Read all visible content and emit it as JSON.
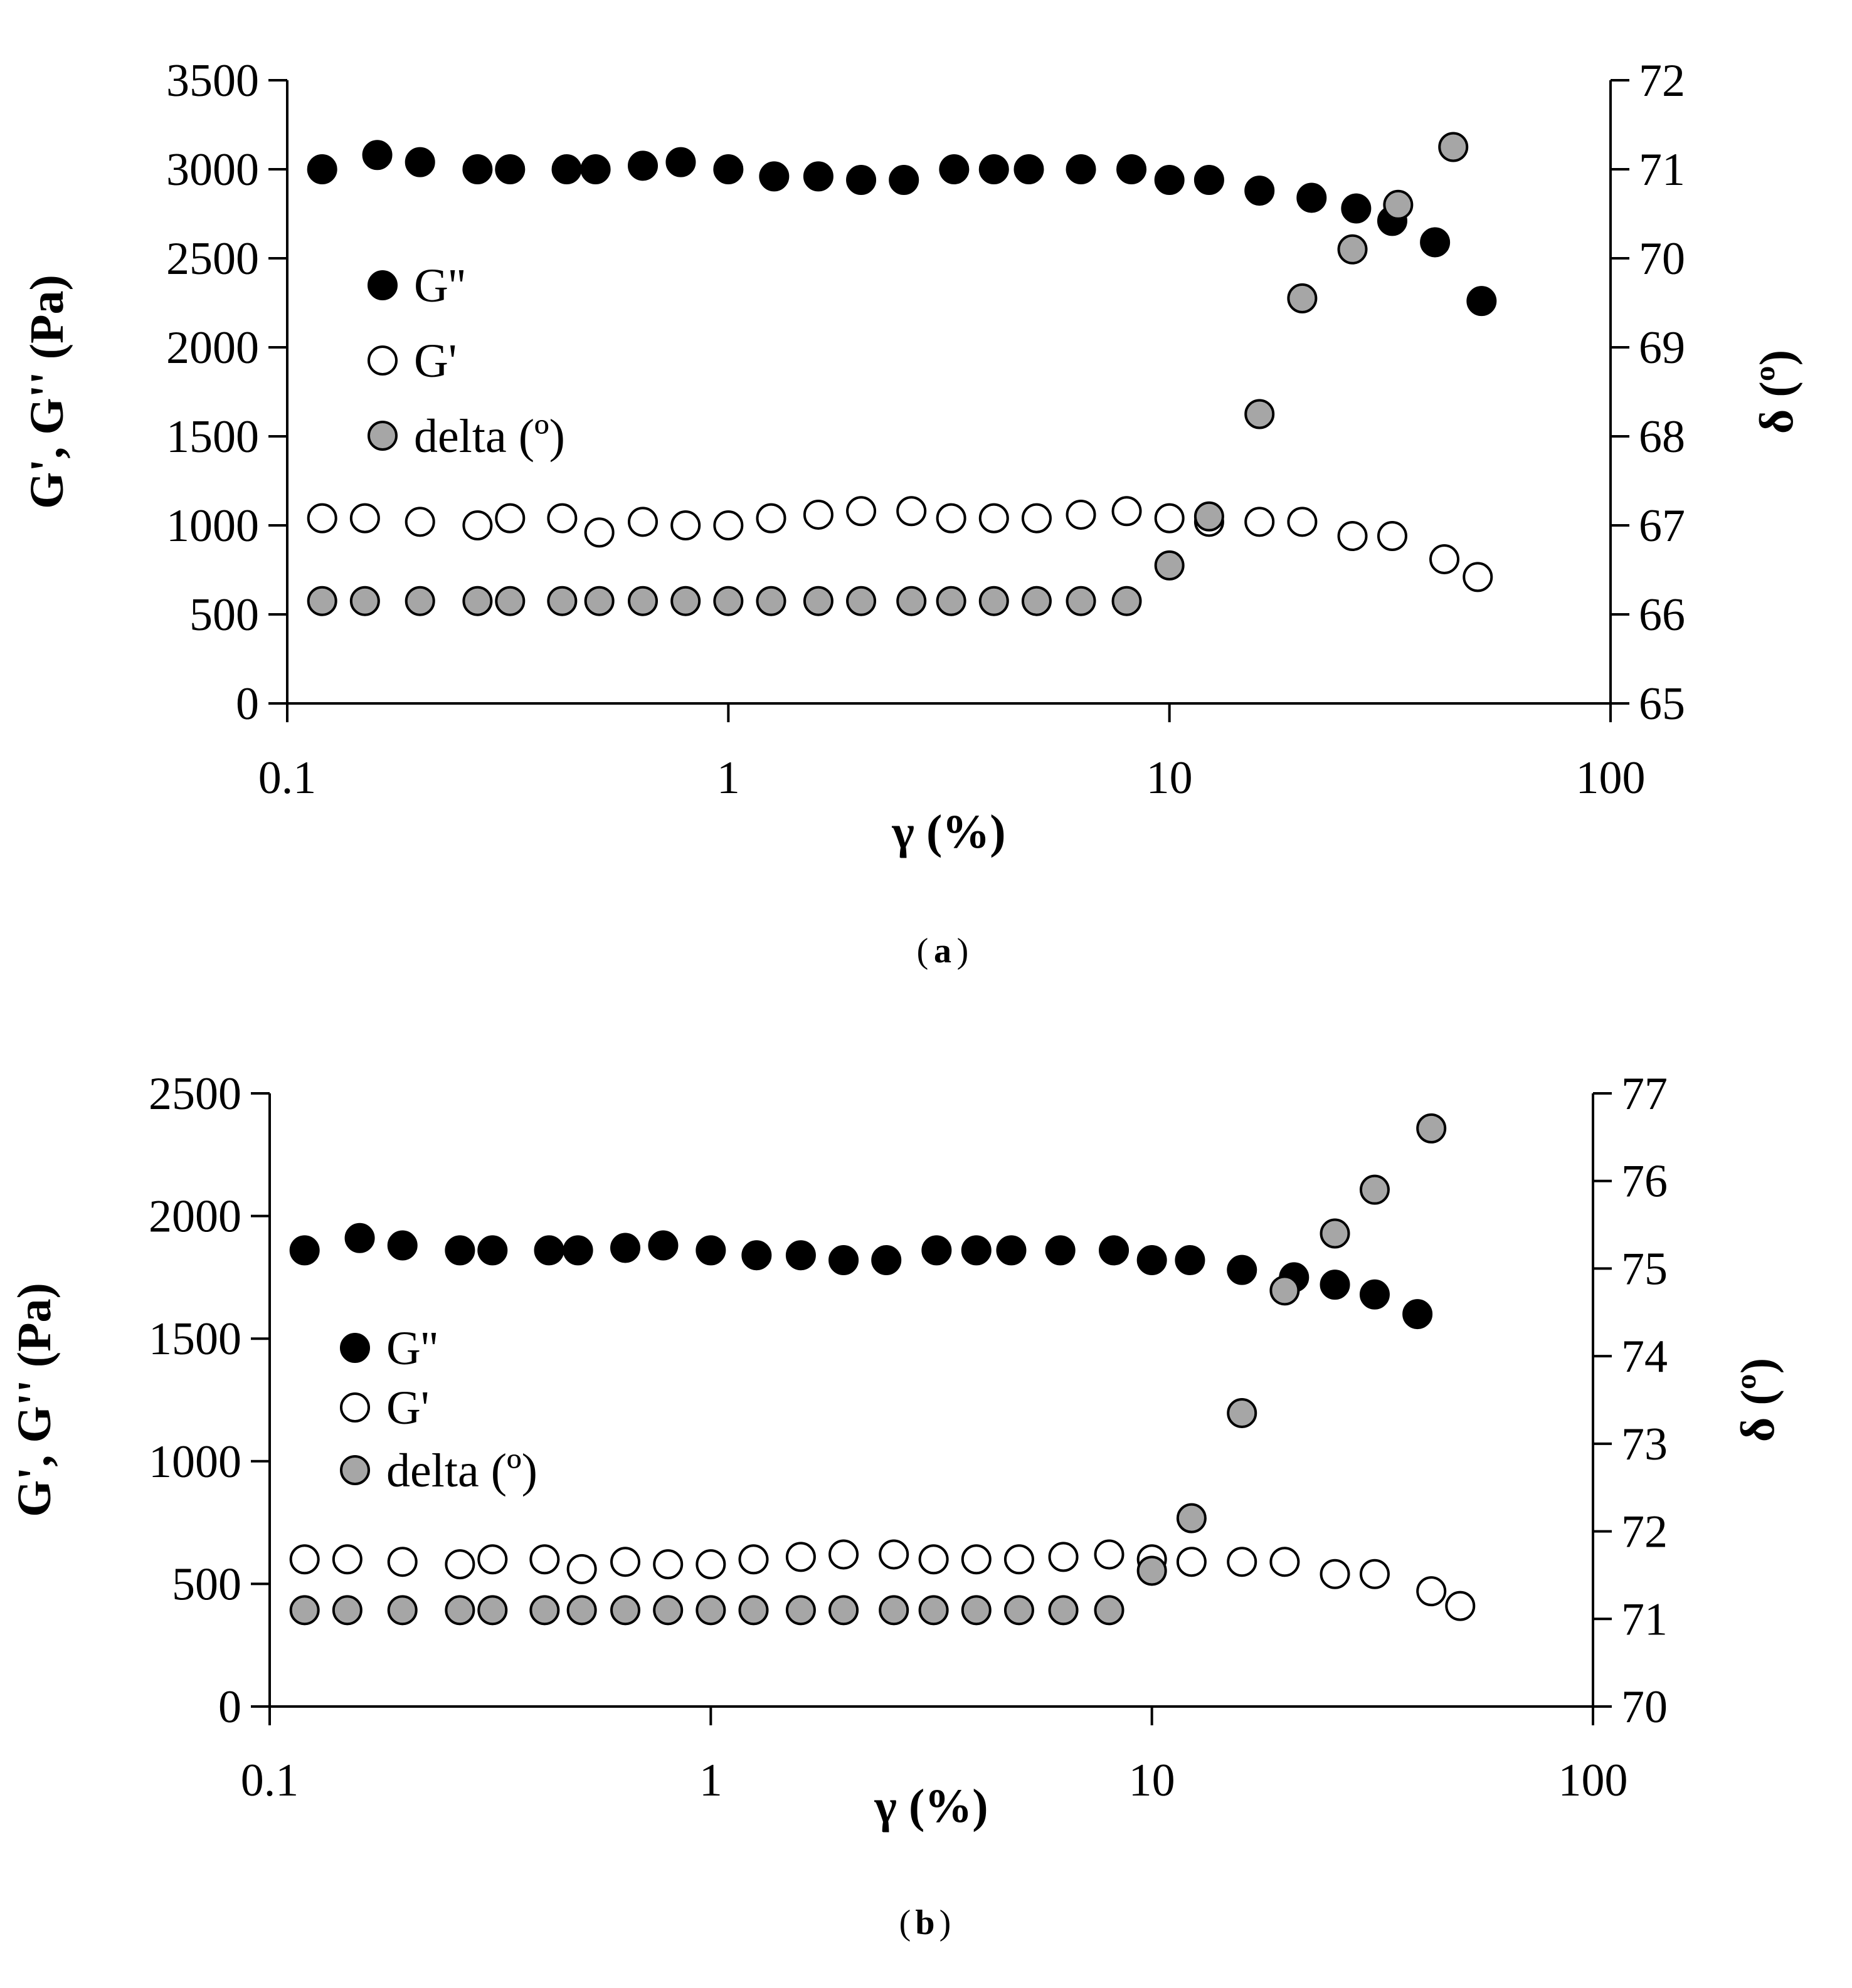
{
  "chart_data": [
    {
      "id": "a",
      "type": "scatter",
      "caption": "a",
      "x_scale": "log",
      "xlabel": "γ (%)",
      "ylabel": "G', G'' (Pa)",
      "ylabel_right": "δ (º)",
      "xlim": [
        0.1,
        100
      ],
      "ylim": [
        0,
        3500
      ],
      "ylim_right": [
        65,
        72
      ],
      "x_ticks": [
        "0.1",
        "1",
        "10",
        "100"
      ],
      "y_ticks": [
        "0",
        "500",
        "1000",
        "1500",
        "2000",
        "2500",
        "3000",
        "3500"
      ],
      "y_right_ticks": [
        "65",
        "66",
        "67",
        "68",
        "69",
        "70",
        "71",
        "72"
      ],
      "legend_position": "upper-left",
      "series": [
        {
          "name": "G''",
          "axis": "left",
          "marker": "filled-black",
          "x": [
            0.12,
            0.16,
            0.2,
            0.27,
            0.32,
            0.43,
            0.5,
            0.64,
            0.78,
            1.0,
            1.27,
            1.6,
            2.0,
            2.5,
            3.25,
            4.0,
            4.8,
            6.3,
            8.2,
            10.0,
            12.3,
            16.0,
            21.0,
            26.5,
            32.0,
            40.0,
            51.0
          ],
          "values": [
            3000,
            3080,
            3040,
            3000,
            3000,
            3000,
            3000,
            3020,
            3040,
            3000,
            2960,
            2960,
            2940,
            2940,
            3000,
            3000,
            3000,
            3000,
            3000,
            2940,
            2940,
            2880,
            2840,
            2780,
            2710,
            2590,
            2260
          ]
        },
        {
          "name": "G'",
          "axis": "left",
          "marker": "open-circle",
          "x": [
            0.12,
            0.15,
            0.2,
            0.27,
            0.32,
            0.42,
            0.51,
            0.64,
            0.8,
            1.0,
            1.25,
            1.6,
            2.0,
            2.6,
            3.2,
            4.0,
            5.0,
            6.3,
            8.0,
            10.0,
            12.3,
            16.0,
            20.0,
            26.0,
            32.0,
            42.0,
            50.0
          ],
          "values": [
            1040,
            1040,
            1020,
            1000,
            1040,
            1040,
            960,
            1020,
            1000,
            1000,
            1040,
            1060,
            1080,
            1080,
            1040,
            1040,
            1040,
            1060,
            1080,
            1040,
            1020,
            1020,
            1020,
            940,
            940,
            810,
            710
          ]
        },
        {
          "name": "delta (º)",
          "axis": "right",
          "marker": "filled-gray",
          "x": [
            0.12,
            0.15,
            0.2,
            0.27,
            0.32,
            0.42,
            0.51,
            0.64,
            0.8,
            1.0,
            1.25,
            1.6,
            2.0,
            2.6,
            3.2,
            4.0,
            5.0,
            6.3,
            8.0,
            10.0,
            12.3,
            16.0,
            20.0,
            26.0,
            33.0,
            44.0
          ],
          "values": [
            66.15,
            66.15,
            66.15,
            66.15,
            66.15,
            66.15,
            66.15,
            66.15,
            66.15,
            66.15,
            66.15,
            66.15,
            66.15,
            66.15,
            66.15,
            66.15,
            66.15,
            66.15,
            66.15,
            66.55,
            67.1,
            68.25,
            69.55,
            70.1,
            70.6,
            71.25
          ]
        }
      ]
    },
    {
      "id": "b",
      "type": "scatter",
      "caption": "b",
      "x_scale": "log",
      "xlabel": "γ (%)",
      "ylabel": "G', G'' (Pa)",
      "ylabel_right": "δ (º)",
      "xlim": [
        0.1,
        100
      ],
      "ylim": [
        0,
        2500
      ],
      "ylim_right": [
        70,
        77
      ],
      "x_ticks": [
        "0.1",
        "1",
        "10",
        "100"
      ],
      "y_ticks": [
        "0",
        "500",
        "1000",
        "1500",
        "2000",
        "2500"
      ],
      "y_right_ticks": [
        "70",
        "71",
        "72",
        "73",
        "74",
        "75",
        "76",
        "77"
      ],
      "legend_position": "center-left",
      "series": [
        {
          "name": "G''",
          "axis": "left",
          "marker": "filled-black",
          "x": [
            0.12,
            0.16,
            0.2,
            0.27,
            0.32,
            0.43,
            0.5,
            0.64,
            0.78,
            1.0,
            1.27,
            1.6,
            2.0,
            2.5,
            3.25,
            4.0,
            4.8,
            6.2,
            8.2,
            10.0,
            12.2,
            16.0,
            21.0,
            26.0,
            32.0,
            40.0
          ],
          "values": [
            1860,
            1910,
            1880,
            1860,
            1860,
            1860,
            1860,
            1870,
            1880,
            1860,
            1840,
            1840,
            1820,
            1820,
            1860,
            1860,
            1860,
            1860,
            1860,
            1820,
            1820,
            1780,
            1750,
            1720,
            1680,
            1600
          ]
        },
        {
          "name": "G'",
          "axis": "left",
          "marker": "open-circle",
          "x": [
            0.12,
            0.15,
            0.2,
            0.27,
            0.32,
            0.42,
            0.51,
            0.64,
            0.8,
            1.0,
            1.25,
            1.6,
            2.0,
            2.6,
            3.2,
            4.0,
            5.0,
            6.3,
            8.0,
            10.0,
            12.3,
            16.0,
            20.0,
            26.0,
            32.0,
            43.0,
            50.0
          ],
          "values": [
            600,
            600,
            590,
            580,
            600,
            600,
            560,
            590,
            580,
            580,
            600,
            610,
            620,
            620,
            600,
            600,
            600,
            610,
            620,
            600,
            590,
            590,
            590,
            540,
            540,
            470,
            410
          ]
        },
        {
          "name": "delta (º)",
          "axis": "right",
          "marker": "filled-gray",
          "x": [
            0.12,
            0.15,
            0.2,
            0.27,
            0.32,
            0.42,
            0.51,
            0.64,
            0.8,
            1.0,
            1.25,
            1.6,
            2.0,
            2.6,
            3.2,
            4.0,
            5.0,
            6.3,
            8.0,
            10.0,
            12.3,
            16.0,
            20.0,
            26.0,
            32.0,
            43.0
          ],
          "values": [
            71.1,
            71.1,
            71.1,
            71.1,
            71.1,
            71.1,
            71.1,
            71.1,
            71.1,
            71.1,
            71.1,
            71.1,
            71.1,
            71.1,
            71.1,
            71.1,
            71.1,
            71.1,
            71.1,
            71.55,
            72.15,
            73.35,
            74.75,
            75.4,
            75.9,
            76.6
          ]
        }
      ]
    }
  ]
}
